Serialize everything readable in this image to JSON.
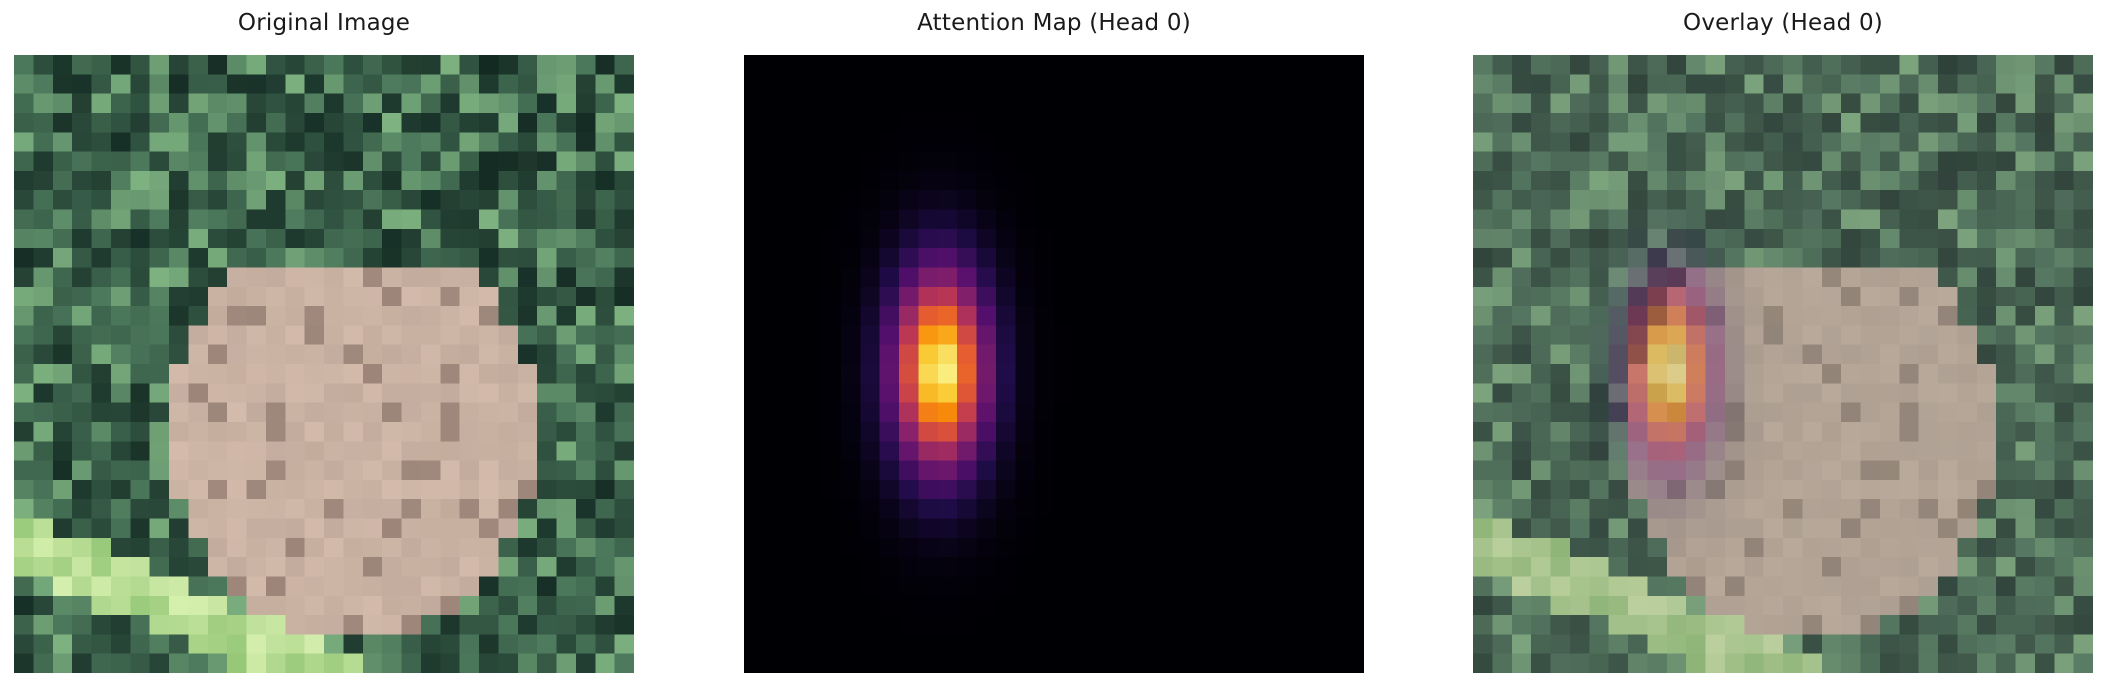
{
  "panels": [
    {
      "title": "Original Image"
    },
    {
      "title": "Attention Map (Head 0)"
    },
    {
      "title": "Overlay (Head 0)"
    }
  ],
  "colors": {
    "background": "#ffffff",
    "title_text": "#1a1a1a",
    "attention_background": "#000004",
    "frog_tone": "#c2ab9c",
    "foliage_tone": "#5f8a6a",
    "attention_peak": "#fcffa4"
  },
  "attention_colormap": "inferno"
}
